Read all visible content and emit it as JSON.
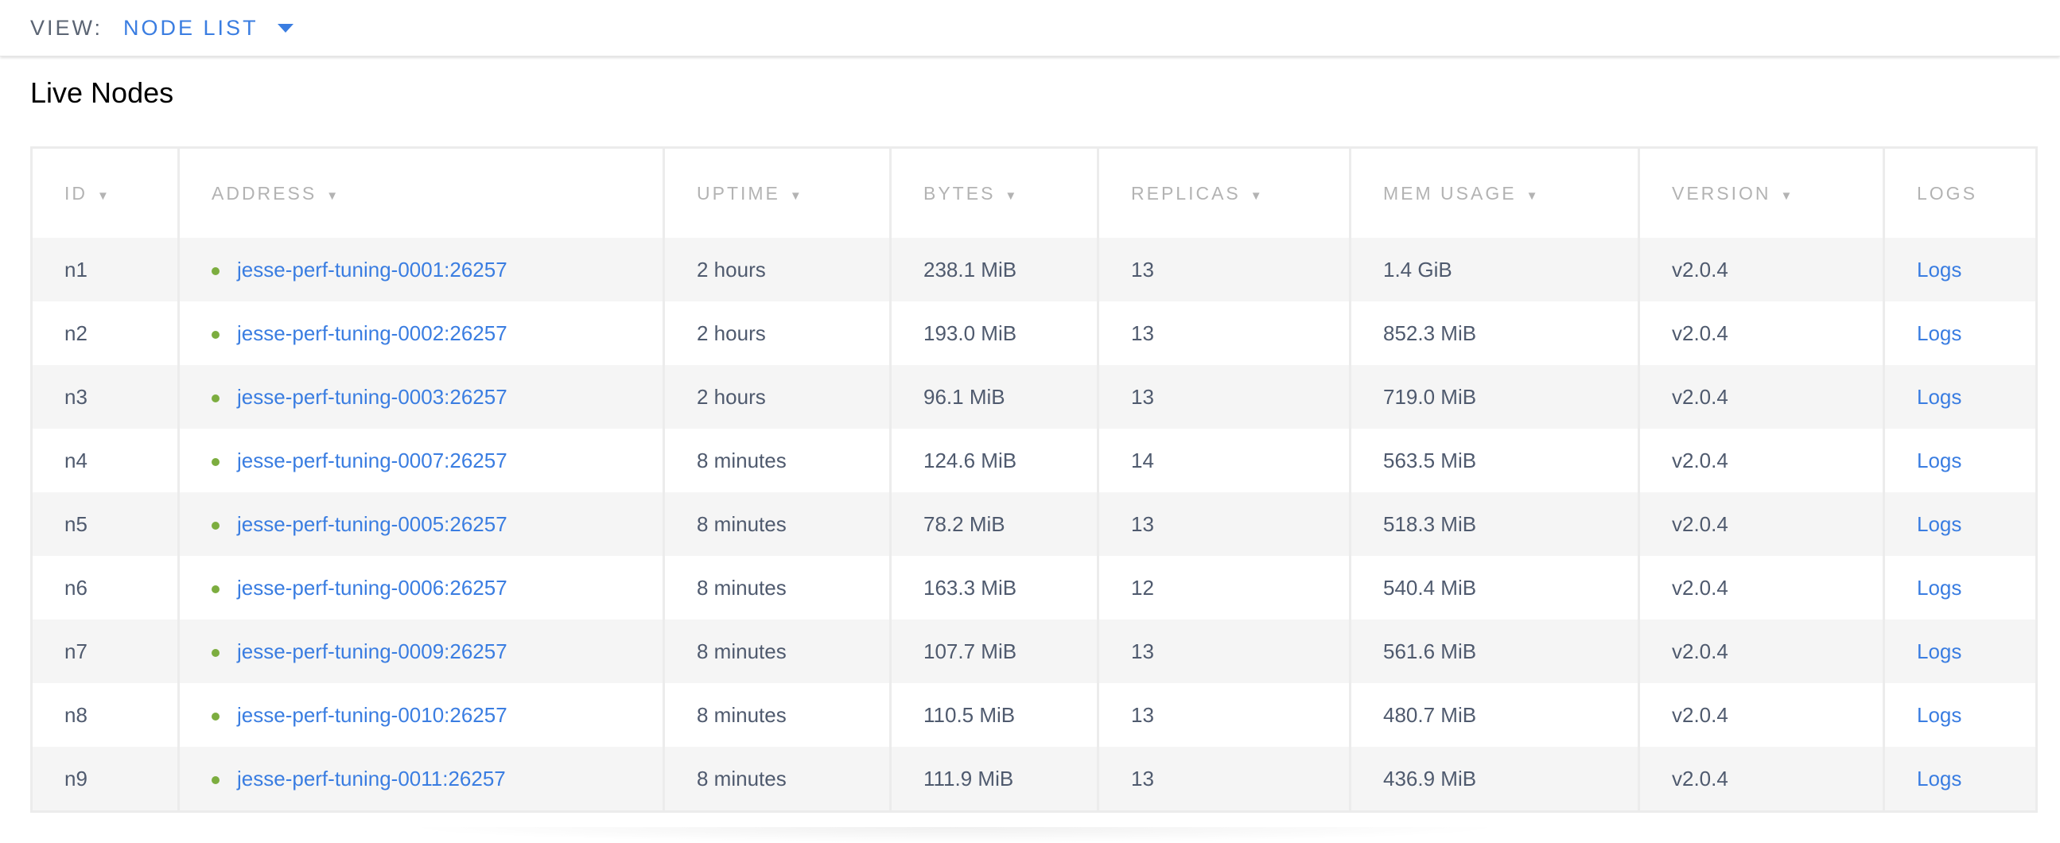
{
  "header": {
    "view_label": "VIEW:",
    "view_value": "NODE LIST"
  },
  "page_title": "Live Nodes",
  "table": {
    "columns": [
      {
        "label": "ID",
        "sortable": true
      },
      {
        "label": "ADDRESS",
        "sortable": true
      },
      {
        "label": "UPTIME",
        "sortable": true
      },
      {
        "label": "BYTES",
        "sortable": true
      },
      {
        "label": "REPLICAS",
        "sortable": true
      },
      {
        "label": "MEM USAGE",
        "sortable": true
      },
      {
        "label": "VERSION",
        "sortable": true
      },
      {
        "label": "LOGS",
        "sortable": false
      }
    ],
    "sort_icon": "▼",
    "rows": [
      {
        "id": "n1",
        "address": "jesse-perf-tuning-0001:26257",
        "uptime": "2 hours",
        "bytes": "238.1 MiB",
        "replicas": "13",
        "mem": "1.4 GiB",
        "version": "v2.0.4",
        "logs": "Logs"
      },
      {
        "id": "n2",
        "address": "jesse-perf-tuning-0002:26257",
        "uptime": "2 hours",
        "bytes": "193.0 MiB",
        "replicas": "13",
        "mem": "852.3 MiB",
        "version": "v2.0.4",
        "logs": "Logs"
      },
      {
        "id": "n3",
        "address": "jesse-perf-tuning-0003:26257",
        "uptime": "2 hours",
        "bytes": "96.1 MiB",
        "replicas": "13",
        "mem": "719.0 MiB",
        "version": "v2.0.4",
        "logs": "Logs"
      },
      {
        "id": "n4",
        "address": "jesse-perf-tuning-0007:26257",
        "uptime": "8 minutes",
        "bytes": "124.6 MiB",
        "replicas": "14",
        "mem": "563.5 MiB",
        "version": "v2.0.4",
        "logs": "Logs"
      },
      {
        "id": "n5",
        "address": "jesse-perf-tuning-0005:26257",
        "uptime": "8 minutes",
        "bytes": "78.2 MiB",
        "replicas": "13",
        "mem": "518.3 MiB",
        "version": "v2.0.4",
        "logs": "Logs"
      },
      {
        "id": "n6",
        "address": "jesse-perf-tuning-0006:26257",
        "uptime": "8 minutes",
        "bytes": "163.3 MiB",
        "replicas": "12",
        "mem": "540.4 MiB",
        "version": "v2.0.4",
        "logs": "Logs"
      },
      {
        "id": "n7",
        "address": "jesse-perf-tuning-0009:26257",
        "uptime": "8 minutes",
        "bytes": "107.7 MiB",
        "replicas": "13",
        "mem": "561.6 MiB",
        "version": "v2.0.4",
        "logs": "Logs"
      },
      {
        "id": "n8",
        "address": "jesse-perf-tuning-0010:26257",
        "uptime": "8 minutes",
        "bytes": "110.5 MiB",
        "replicas": "13",
        "mem": "480.7 MiB",
        "version": "v2.0.4",
        "logs": "Logs"
      },
      {
        "id": "n9",
        "address": "jesse-perf-tuning-0011:26257",
        "uptime": "8 minutes",
        "bytes": "111.9 MiB",
        "replicas": "13",
        "mem": "436.9 MiB",
        "version": "v2.0.4",
        "logs": "Logs"
      }
    ]
  },
  "colors": {
    "accent": "#3a7de1",
    "status_live": "#7cad3f",
    "text": "#4f5a6e",
    "header_text": "#b3b3b3",
    "stripe": "#f5f5f5"
  }
}
